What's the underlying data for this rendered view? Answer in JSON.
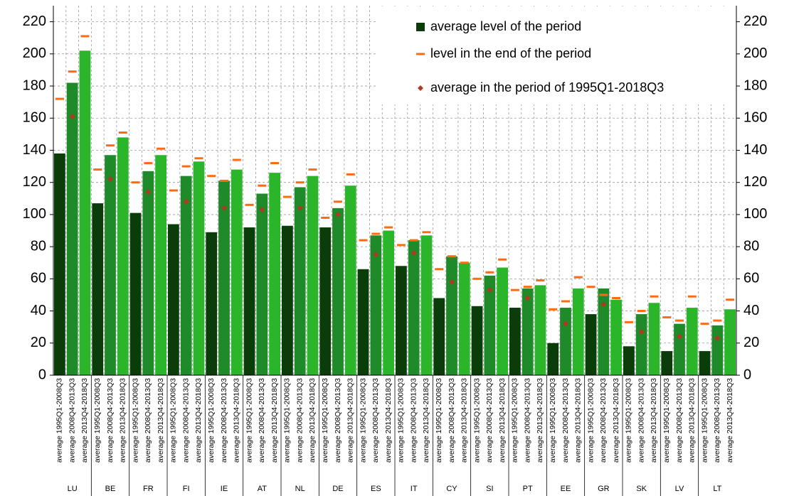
{
  "chart_data": {
    "type": "grouped_bar",
    "groups": [
      "LU",
      "BE",
      "FR",
      "FI",
      "IE",
      "AT",
      "NL",
      "DE",
      "ES",
      "IT",
      "CY",
      "SI",
      "PT",
      "EE",
      "GR",
      "SK",
      "LV",
      "LT"
    ],
    "subcategories": [
      "average 1995Q1-2008Q3",
      "average 2008Q4-2013Q3",
      "average 2013Q4-2018Q3"
    ],
    "bar_colors": [
      "#0a3d0a",
      "#1e8a2a",
      "#2ab52a"
    ],
    "series": [
      {
        "name": "average level of the period",
        "color": "#0a3d0a",
        "values": [
          [
            138,
            182,
            202
          ],
          [
            107,
            137,
            148
          ],
          [
            101,
            127,
            137
          ],
          [
            94,
            124,
            133
          ],
          [
            89,
            121,
            128
          ],
          [
            92,
            113,
            126
          ],
          [
            93,
            117,
            124
          ],
          [
            92,
            104,
            118
          ],
          [
            66,
            87,
            90
          ],
          [
            68,
            84,
            87
          ],
          [
            48,
            74,
            70
          ],
          [
            43,
            62,
            67
          ],
          [
            42,
            54,
            56
          ],
          [
            20,
            42,
            54
          ],
          [
            38,
            54,
            47
          ],
          [
            18,
            38,
            45
          ],
          [
            15,
            32,
            42
          ],
          [
            15,
            31,
            41
          ]
        ]
      },
      {
        "name": "level in the end of the period",
        "color": "#ff6a13",
        "values": [
          [
            172,
            189,
            211
          ],
          [
            128,
            143,
            151
          ],
          [
            120,
            132,
            141
          ],
          [
            115,
            130,
            135
          ],
          [
            124,
            121,
            134
          ],
          [
            106,
            118,
            132
          ],
          [
            111,
            120,
            128
          ],
          [
            98,
            108,
            125
          ],
          [
            84,
            88,
            92
          ],
          [
            81,
            84,
            89
          ],
          [
            66,
            74,
            70
          ],
          [
            60,
            64,
            72
          ],
          [
            53,
            55,
            59
          ],
          [
            41,
            46,
            61
          ],
          [
            55,
            50,
            48
          ],
          [
            33,
            40,
            49
          ],
          [
            36,
            34,
            49
          ],
          [
            32,
            34,
            47
          ]
        ]
      },
      {
        "name": "average in the period of 1995Q1-2018Q3",
        "color": "#b03a1e",
        "values": [
          161,
          122,
          114,
          108,
          104,
          103,
          104,
          100,
          75,
          76,
          58,
          53,
          48,
          32,
          44,
          27,
          24,
          23
        ]
      }
    ],
    "ylim": [
      0,
      230
    ],
    "yticks": [
      0,
      20,
      40,
      60,
      80,
      100,
      120,
      140,
      160,
      180,
      200,
      220
    ],
    "y2lim": [
      0,
      230
    ],
    "y2ticks": [
      0,
      20,
      40,
      60,
      80,
      100,
      120,
      140,
      160,
      180,
      200,
      220
    ],
    "grid": true,
    "legend": "upper right"
  }
}
